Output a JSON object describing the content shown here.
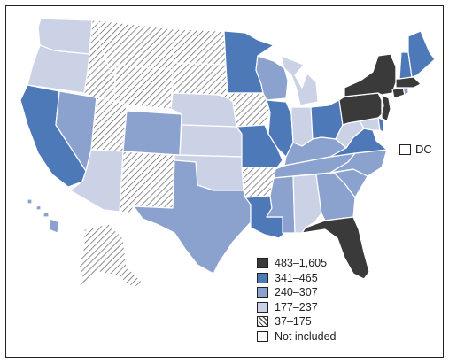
{
  "colors": {
    "c1": "#3a3a3a",
    "c2": "#4e79b9",
    "c3": "#8ba2cf",
    "c4": "#ccd2e6",
    "c5": "hatch",
    "c6": "#ffffff"
  },
  "legend": [
    {
      "label": "483–1,605",
      "cls": "c1"
    },
    {
      "label": "341–465",
      "cls": "c2"
    },
    {
      "label": "240–307",
      "cls": "c3"
    },
    {
      "label": "177–237",
      "cls": "c4"
    },
    {
      "label": "37–175",
      "cls": "c5"
    },
    {
      "label": "Not included",
      "cls": "c6"
    }
  ],
  "dc": {
    "label": "DC",
    "cls": "c6"
  },
  "states": {
    "WA": "c4",
    "OR": "c4",
    "CA": "c2",
    "NV": "c3",
    "ID": "c5",
    "MT": "c5",
    "WY": "c5",
    "UT": "c5",
    "AZ": "c4",
    "NM": "c5",
    "CO": "c3",
    "ND": "c5",
    "SD": "c5",
    "NE": "c4",
    "KS": "c4",
    "OK": "c4",
    "TX": "c3",
    "MN": "c2",
    "IA": "c5",
    "MO": "c2",
    "AR": "c5",
    "LA": "c2",
    "WI": "c3",
    "IL": "c2",
    "MI": "c4",
    "IN": "c4",
    "OH": "c2",
    "KY": "c3",
    "TN": "c3",
    "MS": "c3",
    "AL": "c4",
    "GA": "c3",
    "FL": "c1",
    "SC": "c3",
    "NC": "c3",
    "VA": "c2",
    "WV": "c4",
    "MD": "c4",
    "DE": "c2",
    "PA": "c1",
    "NY": "c1",
    "NJ": "c1",
    "CT": "c1",
    "RI": "c3",
    "MA": "c1",
    "VT": "c6",
    "NH": "c2",
    "ME": "c2",
    "AK": "c5",
    "HI": "c3"
  }
}
